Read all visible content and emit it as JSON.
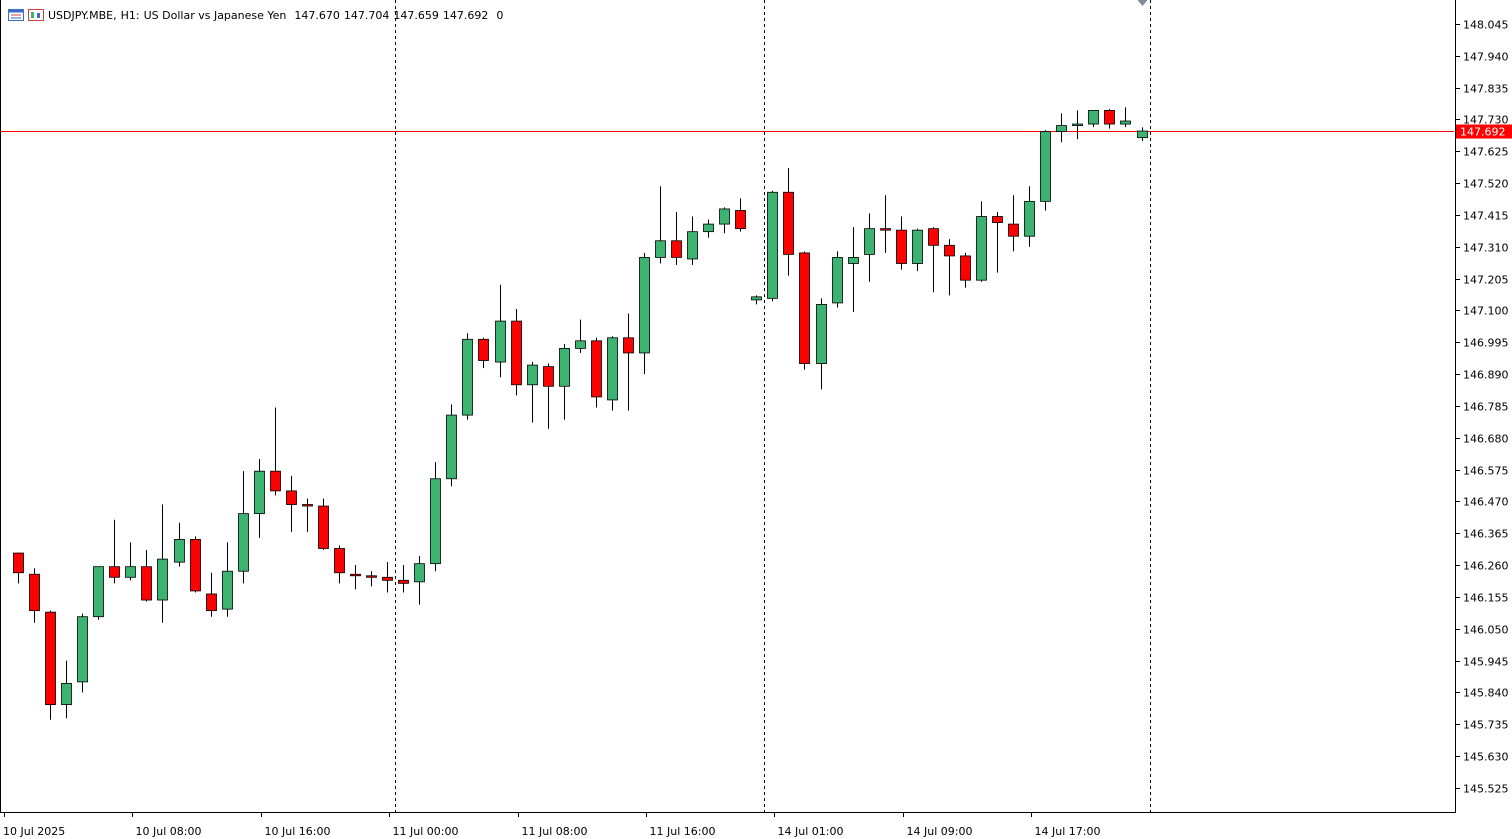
{
  "header": {
    "symbol": "USDJPY.MBE,",
    "timeframe": "H1:",
    "description": "US Dollar vs Japanese Yen",
    "open": "147.670",
    "high": "147.704",
    "low": "147.659",
    "close": "147.692",
    "volume": "0",
    "icons": [
      "list-view-icon",
      "chart-toggle-icon"
    ]
  },
  "colors": {
    "bull": "#3cb371",
    "bear": "#ff0000",
    "bid_line": "#ff0000",
    "grid_separator": "#000000",
    "axis": "#000000"
  },
  "chart_data": {
    "type": "candlestick",
    "title": "",
    "xlabel": "",
    "ylabel": "",
    "ylim": [
      145.42,
      148.11
    ],
    "grid": false,
    "current_price": "147.692",
    "y_ticks": [
      "148.045",
      "147.940",
      "147.835",
      "147.730",
      "147.625",
      "147.520",
      "147.415",
      "147.310",
      "147.205",
      "147.100",
      "146.995",
      "146.890",
      "146.785",
      "146.680",
      "146.575",
      "146.470",
      "146.365",
      "146.260",
      "146.155",
      "146.050",
      "145.945",
      "145.840",
      "145.735",
      "145.630",
      "145.525"
    ],
    "x_ticks": [
      {
        "label": "10 Jul 2025",
        "bar": 0
      },
      {
        "label": "10 Jul 08:00",
        "bar": 8
      },
      {
        "label": "10 Jul 16:00",
        "bar": 16
      },
      {
        "label": "11 Jul 00:00",
        "bar": 24
      },
      {
        "label": "11 Jul 08:00",
        "bar": 32
      },
      {
        "label": "11 Jul 16:00",
        "bar": 40
      },
      {
        "label": "14 Jul 01:00",
        "bar": 48
      },
      {
        "label": "14 Jul 09:00",
        "bar": 56
      },
      {
        "label": "14 Jul 17:00",
        "bar": 64
      }
    ],
    "separators": [
      23.5,
      46.5,
      70.5
    ],
    "candles": [
      {
        "o": 146.3,
        "h": 146.3,
        "l": 146.2,
        "c": 146.235
      },
      {
        "o": 146.23,
        "h": 146.25,
        "l": 146.07,
        "c": 146.11
      },
      {
        "o": 146.105,
        "h": 146.11,
        "l": 145.75,
        "c": 145.8
      },
      {
        "o": 145.8,
        "h": 145.945,
        "l": 145.755,
        "c": 145.87
      },
      {
        "o": 145.875,
        "h": 146.1,
        "l": 145.84,
        "c": 146.09
      },
      {
        "o": 146.09,
        "h": 146.255,
        "l": 146.08,
        "c": 146.255
      },
      {
        "o": 146.255,
        "h": 146.41,
        "l": 146.2,
        "c": 146.22
      },
      {
        "o": 146.22,
        "h": 146.335,
        "l": 146.21,
        "c": 146.255
      },
      {
        "o": 146.255,
        "h": 146.31,
        "l": 146.14,
        "c": 146.145
      },
      {
        "o": 146.145,
        "h": 146.46,
        "l": 146.07,
        "c": 146.28
      },
      {
        "o": 146.27,
        "h": 146.4,
        "l": 146.255,
        "c": 146.345
      },
      {
        "o": 146.345,
        "h": 146.355,
        "l": 146.17,
        "c": 146.175
      },
      {
        "o": 146.165,
        "h": 146.235,
        "l": 146.09,
        "c": 146.11
      },
      {
        "o": 146.115,
        "h": 146.335,
        "l": 146.09,
        "c": 146.24
      },
      {
        "o": 146.24,
        "h": 146.57,
        "l": 146.2,
        "c": 146.43
      },
      {
        "o": 146.43,
        "h": 146.61,
        "l": 146.35,
        "c": 146.57
      },
      {
        "o": 146.57,
        "h": 146.78,
        "l": 146.49,
        "c": 146.505
      },
      {
        "o": 146.505,
        "h": 146.555,
        "l": 146.37,
        "c": 146.46
      },
      {
        "o": 146.46,
        "h": 146.48,
        "l": 146.37,
        "c": 146.455
      },
      {
        "o": 146.455,
        "h": 146.48,
        "l": 146.31,
        "c": 146.315
      },
      {
        "o": 146.315,
        "h": 146.325,
        "l": 146.2,
        "c": 146.235
      },
      {
        "o": 146.23,
        "h": 146.26,
        "l": 146.18,
        "c": 146.225
      },
      {
        "o": 146.225,
        "h": 146.24,
        "l": 146.19,
        "c": 146.22
      },
      {
        "o": 146.22,
        "h": 146.27,
        "l": 146.17,
        "c": 146.21
      },
      {
        "o": 146.21,
        "h": 146.26,
        "l": 146.17,
        "c": 146.2
      },
      {
        "o": 146.205,
        "h": 146.29,
        "l": 146.13,
        "c": 146.265
      },
      {
        "o": 146.265,
        "h": 146.6,
        "l": 146.24,
        "c": 146.545
      },
      {
        "o": 146.545,
        "h": 146.79,
        "l": 146.52,
        "c": 146.755
      },
      {
        "o": 146.755,
        "h": 147.025,
        "l": 146.74,
        "c": 147.005
      },
      {
        "o": 147.005,
        "h": 147.01,
        "l": 146.91,
        "c": 146.935
      },
      {
        "o": 146.93,
        "h": 147.185,
        "l": 146.88,
        "c": 147.065
      },
      {
        "o": 147.065,
        "h": 147.105,
        "l": 146.82,
        "c": 146.855
      },
      {
        "o": 146.855,
        "h": 146.93,
        "l": 146.73,
        "c": 146.92
      },
      {
        "o": 146.915,
        "h": 146.925,
        "l": 146.71,
        "c": 146.85
      },
      {
        "o": 146.85,
        "h": 146.99,
        "l": 146.74,
        "c": 146.975
      },
      {
        "o": 146.975,
        "h": 147.07,
        "l": 146.96,
        "c": 147.0
      },
      {
        "o": 147.0,
        "h": 147.01,
        "l": 146.78,
        "c": 146.815
      },
      {
        "o": 146.805,
        "h": 147.015,
        "l": 146.77,
        "c": 147.01
      },
      {
        "o": 147.01,
        "h": 147.09,
        "l": 146.77,
        "c": 146.96
      },
      {
        "o": 146.96,
        "h": 147.29,
        "l": 146.89,
        "c": 147.275
      },
      {
        "o": 147.275,
        "h": 147.51,
        "l": 147.255,
        "c": 147.33
      },
      {
        "o": 147.33,
        "h": 147.425,
        "l": 147.25,
        "c": 147.275
      },
      {
        "o": 147.27,
        "h": 147.41,
        "l": 147.25,
        "c": 147.36
      },
      {
        "o": 147.36,
        "h": 147.4,
        "l": 147.34,
        "c": 147.385
      },
      {
        "o": 147.385,
        "h": 147.44,
        "l": 147.355,
        "c": 147.435
      },
      {
        "o": 147.43,
        "h": 147.47,
        "l": 147.36,
        "c": 147.37
      },
      {
        "o": 147.135,
        "h": 147.15,
        "l": 147.12,
        "c": 147.145
      },
      {
        "o": 147.14,
        "h": 147.495,
        "l": 147.13,
        "c": 147.49
      },
      {
        "o": 147.49,
        "h": 147.57,
        "l": 147.215,
        "c": 147.285
      },
      {
        "o": 147.29,
        "h": 147.295,
        "l": 146.905,
        "c": 146.925
      },
      {
        "o": 146.925,
        "h": 147.14,
        "l": 146.84,
        "c": 147.12
      },
      {
        "o": 147.125,
        "h": 147.295,
        "l": 147.11,
        "c": 147.275
      },
      {
        "o": 147.255,
        "h": 147.375,
        "l": 147.095,
        "c": 147.275
      },
      {
        "o": 147.285,
        "h": 147.42,
        "l": 147.195,
        "c": 147.37
      },
      {
        "o": 147.37,
        "h": 147.48,
        "l": 147.29,
        "c": 147.365
      },
      {
        "o": 147.365,
        "h": 147.41,
        "l": 147.235,
        "c": 147.255
      },
      {
        "o": 147.255,
        "h": 147.37,
        "l": 147.23,
        "c": 147.365
      },
      {
        "o": 147.37,
        "h": 147.375,
        "l": 147.16,
        "c": 147.315
      },
      {
        "o": 147.315,
        "h": 147.335,
        "l": 147.15,
        "c": 147.28
      },
      {
        "o": 147.28,
        "h": 147.29,
        "l": 147.175,
        "c": 147.2
      },
      {
        "o": 147.2,
        "h": 147.46,
        "l": 147.195,
        "c": 147.41
      },
      {
        "o": 147.41,
        "h": 147.425,
        "l": 147.225,
        "c": 147.39
      },
      {
        "o": 147.385,
        "h": 147.48,
        "l": 147.295,
        "c": 147.345
      },
      {
        "o": 147.345,
        "h": 147.51,
        "l": 147.31,
        "c": 147.46
      },
      {
        "o": 147.46,
        "h": 147.695,
        "l": 147.43,
        "c": 147.69
      },
      {
        "o": 147.69,
        "h": 147.75,
        "l": 147.655,
        "c": 147.71
      },
      {
        "o": 147.71,
        "h": 147.76,
        "l": 147.665,
        "c": 147.715
      },
      {
        "o": 147.715,
        "h": 147.76,
        "l": 147.705,
        "c": 147.76
      },
      {
        "o": 147.76,
        "h": 147.765,
        "l": 147.7,
        "c": 147.715
      },
      {
        "o": 147.715,
        "h": 147.77,
        "l": 147.705,
        "c": 147.725
      },
      {
        "o": 147.67,
        "h": 147.704,
        "l": 147.659,
        "c": 147.692
      }
    ]
  }
}
